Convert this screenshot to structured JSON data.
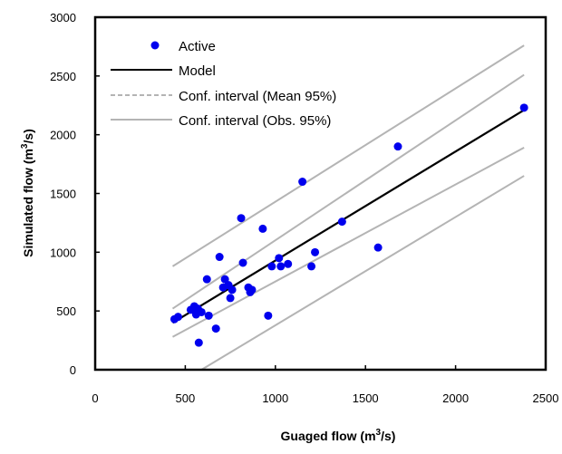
{
  "chart_data": {
    "type": "scatter",
    "xlabel": "Guaged flow (m",
    "xlabel_sup": "3",
    "xlabel_tail": "/s)",
    "ylabel": "Simulated flow (m",
    "ylabel_sup": "3",
    "ylabel_tail": "/s)",
    "xlim": [
      0,
      2500
    ],
    "ylim": [
      0,
      3000
    ],
    "xticks": [
      0,
      500,
      1000,
      1500,
      2000,
      2500
    ],
    "yticks": [
      0,
      500,
      1000,
      1500,
      2000,
      2500,
      3000
    ],
    "xtick_labels": [
      "0",
      "500",
      "1000",
      "1500",
      "2000",
      "2500"
    ],
    "ytick_labels": [
      "0",
      "500",
      "1000",
      "1500",
      "2000",
      "2500",
      "3000"
    ],
    "grid": false,
    "legend_position": "top-left",
    "colors": {
      "points": "#0000ee",
      "model": "#000000",
      "interval": "#b4b4b4"
    },
    "series": [
      {
        "name": "Active",
        "kind": "points",
        "x": [
          440,
          460,
          530,
          550,
          560,
          565,
          570,
          575,
          590,
          620,
          630,
          670,
          690,
          710,
          720,
          740,
          750,
          760,
          810,
          820,
          850,
          860,
          870,
          930,
          960,
          980,
          1020,
          1030,
          1070,
          1150,
          1200,
          1220,
          1370,
          1570,
          1680,
          2380
        ],
        "y": [
          430,
          450,
          510,
          540,
          470,
          500,
          520,
          230,
          490,
          770,
          460,
          350,
          960,
          700,
          770,
          720,
          610,
          680,
          1290,
          910,
          700,
          660,
          680,
          1200,
          460,
          880,
          950,
          880,
          900,
          1600,
          880,
          1000,
          1260,
          1040,
          1900,
          2230
        ]
      },
      {
        "name": "Model",
        "kind": "line",
        "style": "solid",
        "x": [
          430,
          2380
        ],
        "y": [
          400,
          2210
        ]
      },
      {
        "name": "Conf. interval (Mean 95%)",
        "kind": "line",
        "style": "dashed",
        "x": [],
        "y": []
      },
      {
        "name": "Conf. interval (Obs. 95%)",
        "kind": "line",
        "style": "solid-gray",
        "x": [
          430,
          2380
        ],
        "y": [
          880,
          2760
        ]
      },
      {
        "name": "",
        "kind": "line",
        "style": "solid-gray",
        "x": [
          430,
          2380
        ],
        "y": [
          520,
          2510
        ]
      },
      {
        "name": "",
        "kind": "line",
        "style": "solid-gray",
        "x": [
          430,
          2380
        ],
        "y": [
          280,
          1890
        ]
      },
      {
        "name": "",
        "kind": "line",
        "style": "solid-gray",
        "x": [
          590,
          2380
        ],
        "y": [
          0,
          1650
        ]
      }
    ]
  }
}
